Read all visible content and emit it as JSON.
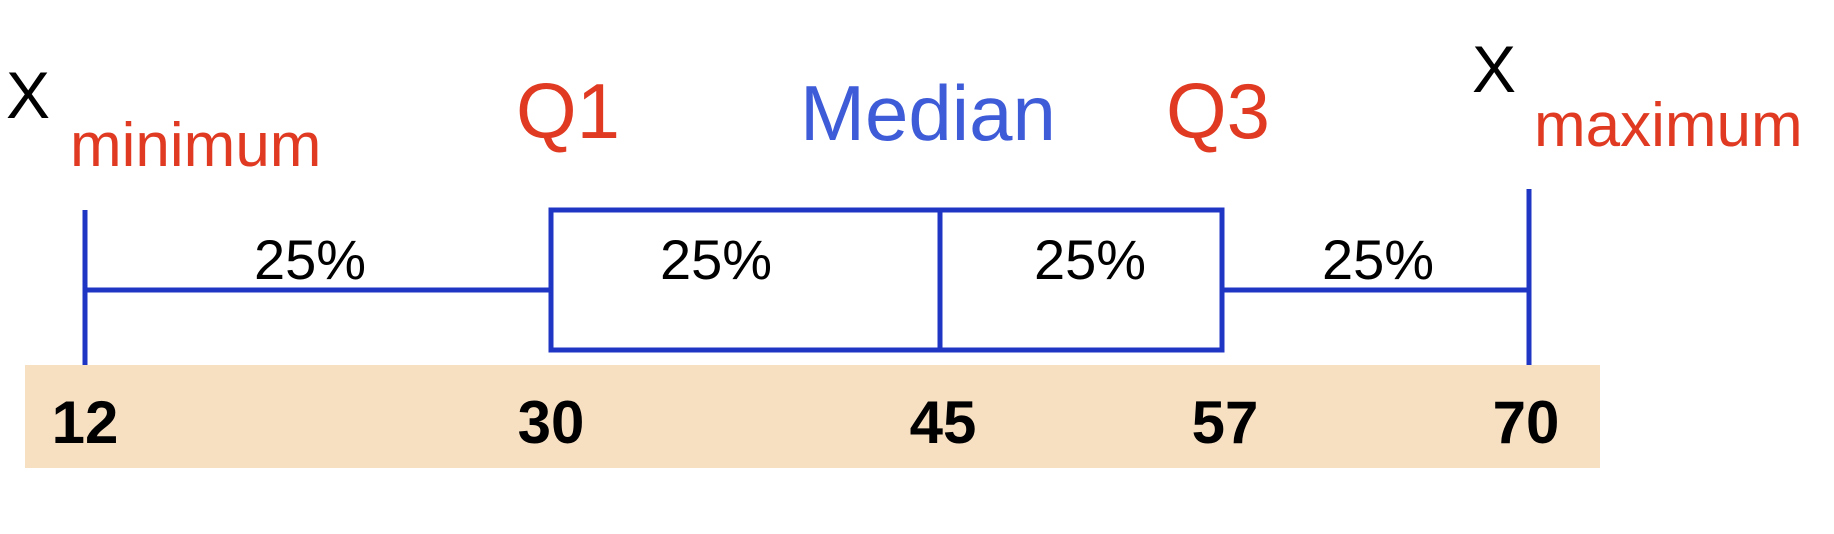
{
  "labels": {
    "x_min_symbol": "X",
    "x_min_sub": "minimum",
    "q1": "Q1",
    "median": "Median",
    "q3": "Q3",
    "x_max_symbol": "X",
    "x_max_sub": "maximum"
  },
  "segments": [
    "25%",
    "25%",
    "25%",
    "25%"
  ],
  "values": {
    "min": "12",
    "q1": "30",
    "median": "45",
    "q3": "57",
    "max": "70"
  },
  "colors": {
    "red": "#e03a22",
    "blue": "#3e5bd8",
    "line": "#1f36c4",
    "band": "#f7dfc2",
    "text": "#000000"
  }
}
